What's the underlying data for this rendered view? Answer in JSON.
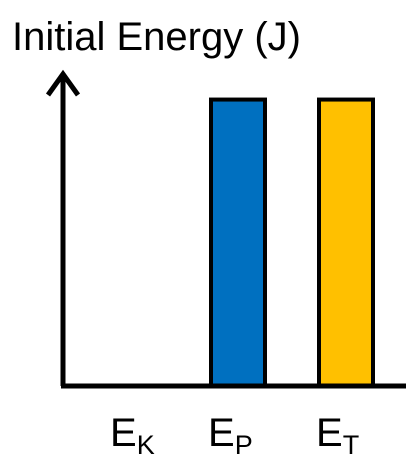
{
  "chart_data": {
    "type": "bar",
    "title": "Initial Energy (J)",
    "categories": [
      {
        "main": "E",
        "sub": "K"
      },
      {
        "main": "E",
        "sub": "P"
      },
      {
        "main": "E",
        "sub": "T"
      }
    ],
    "values": [
      0,
      1,
      1
    ],
    "ylim": [
      0,
      1.18
    ],
    "bar_colors": [
      "#0070C0",
      "#0070C0",
      "#FFC000"
    ],
    "bar_outline_color": "#000000",
    "axis_color": "#000000",
    "grid": false,
    "legend": "none"
  }
}
